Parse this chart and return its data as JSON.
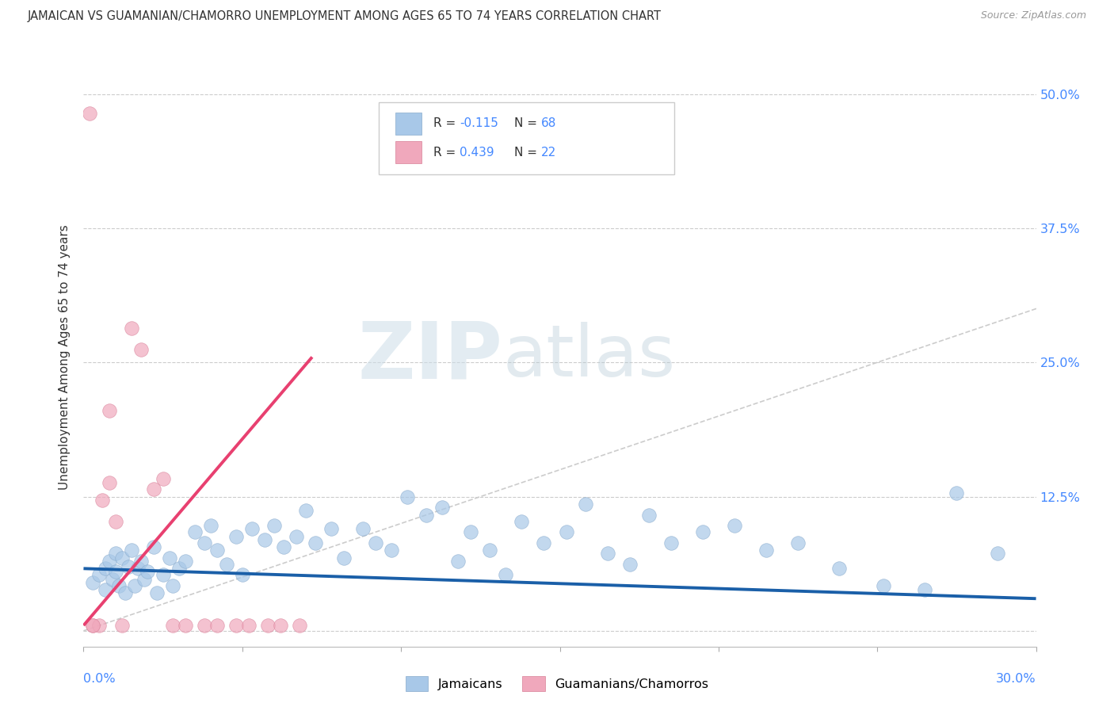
{
  "title": "JAMAICAN VS GUAMANIAN/CHAMORRO UNEMPLOYMENT AMONG AGES 65 TO 74 YEARS CORRELATION CHART",
  "source": "Source: ZipAtlas.com",
  "ylabel": "Unemployment Among Ages 65 to 74 years",
  "xmin": 0.0,
  "xmax": 0.3,
  "ymin": -0.015,
  "ymax": 0.525,
  "yticks": [
    0.0,
    0.125,
    0.25,
    0.375,
    0.5
  ],
  "ytick_labels": [
    "",
    "12.5%",
    "25.0%",
    "37.5%",
    "50.0%"
  ],
  "blue_color": "#a8c8e8",
  "pink_color": "#f0a8bc",
  "blue_edge": "#88aacc",
  "pink_edge": "#d88098",
  "blue_line_color": "#1a5fa8",
  "pink_line_color": "#e84070",
  "diagonal_color": "#cccccc",
  "label_color": "#4488ff",
  "text_color": "#333333",
  "legend_r1_val": "-0.115",
  "legend_n1_val": "68",
  "legend_r2_val": "0.439",
  "legend_n2_val": "22",
  "blue_scatter_x": [
    0.003,
    0.005,
    0.007,
    0.007,
    0.008,
    0.009,
    0.01,
    0.01,
    0.011,
    0.012,
    0.013,
    0.014,
    0.015,
    0.016,
    0.017,
    0.018,
    0.019,
    0.02,
    0.022,
    0.023,
    0.025,
    0.027,
    0.028,
    0.03,
    0.032,
    0.035,
    0.038,
    0.04,
    0.042,
    0.045,
    0.048,
    0.05,
    0.053,
    0.057,
    0.06,
    0.063,
    0.067,
    0.07,
    0.073,
    0.078,
    0.082,
    0.088,
    0.092,
    0.097,
    0.102,
    0.108,
    0.113,
    0.118,
    0.122,
    0.128,
    0.133,
    0.138,
    0.145,
    0.152,
    0.158,
    0.165,
    0.172,
    0.178,
    0.185,
    0.195,
    0.205,
    0.215,
    0.225,
    0.238,
    0.252,
    0.265,
    0.275,
    0.288
  ],
  "blue_scatter_y": [
    0.045,
    0.052,
    0.038,
    0.058,
    0.065,
    0.048,
    0.055,
    0.072,
    0.042,
    0.068,
    0.035,
    0.06,
    0.075,
    0.042,
    0.058,
    0.065,
    0.048,
    0.055,
    0.078,
    0.035,
    0.052,
    0.068,
    0.042,
    0.058,
    0.065,
    0.092,
    0.082,
    0.098,
    0.075,
    0.062,
    0.088,
    0.052,
    0.095,
    0.085,
    0.098,
    0.078,
    0.088,
    0.112,
    0.082,
    0.095,
    0.068,
    0.095,
    0.082,
    0.075,
    0.125,
    0.108,
    0.115,
    0.065,
    0.092,
    0.075,
    0.052,
    0.102,
    0.082,
    0.092,
    0.118,
    0.072,
    0.062,
    0.108,
    0.082,
    0.092,
    0.098,
    0.075,
    0.082,
    0.058,
    0.042,
    0.038,
    0.128,
    0.072
  ],
  "pink_scatter_x": [
    0.002,
    0.003,
    0.005,
    0.006,
    0.008,
    0.01,
    0.012,
    0.015,
    0.018,
    0.022,
    0.025,
    0.028,
    0.032,
    0.038,
    0.042,
    0.048,
    0.052,
    0.058,
    0.062,
    0.068,
    0.003,
    0.008
  ],
  "pink_scatter_y": [
    0.482,
    0.005,
    0.005,
    0.122,
    0.205,
    0.102,
    0.005,
    0.282,
    0.262,
    0.132,
    0.142,
    0.005,
    0.005,
    0.005,
    0.005,
    0.005,
    0.005,
    0.005,
    0.005,
    0.005,
    0.005,
    0.138
  ],
  "blue_trend": [
    0.0,
    0.3,
    0.058,
    0.03
  ],
  "pink_trend": [
    0.0,
    0.072,
    0.005,
    0.255
  ]
}
